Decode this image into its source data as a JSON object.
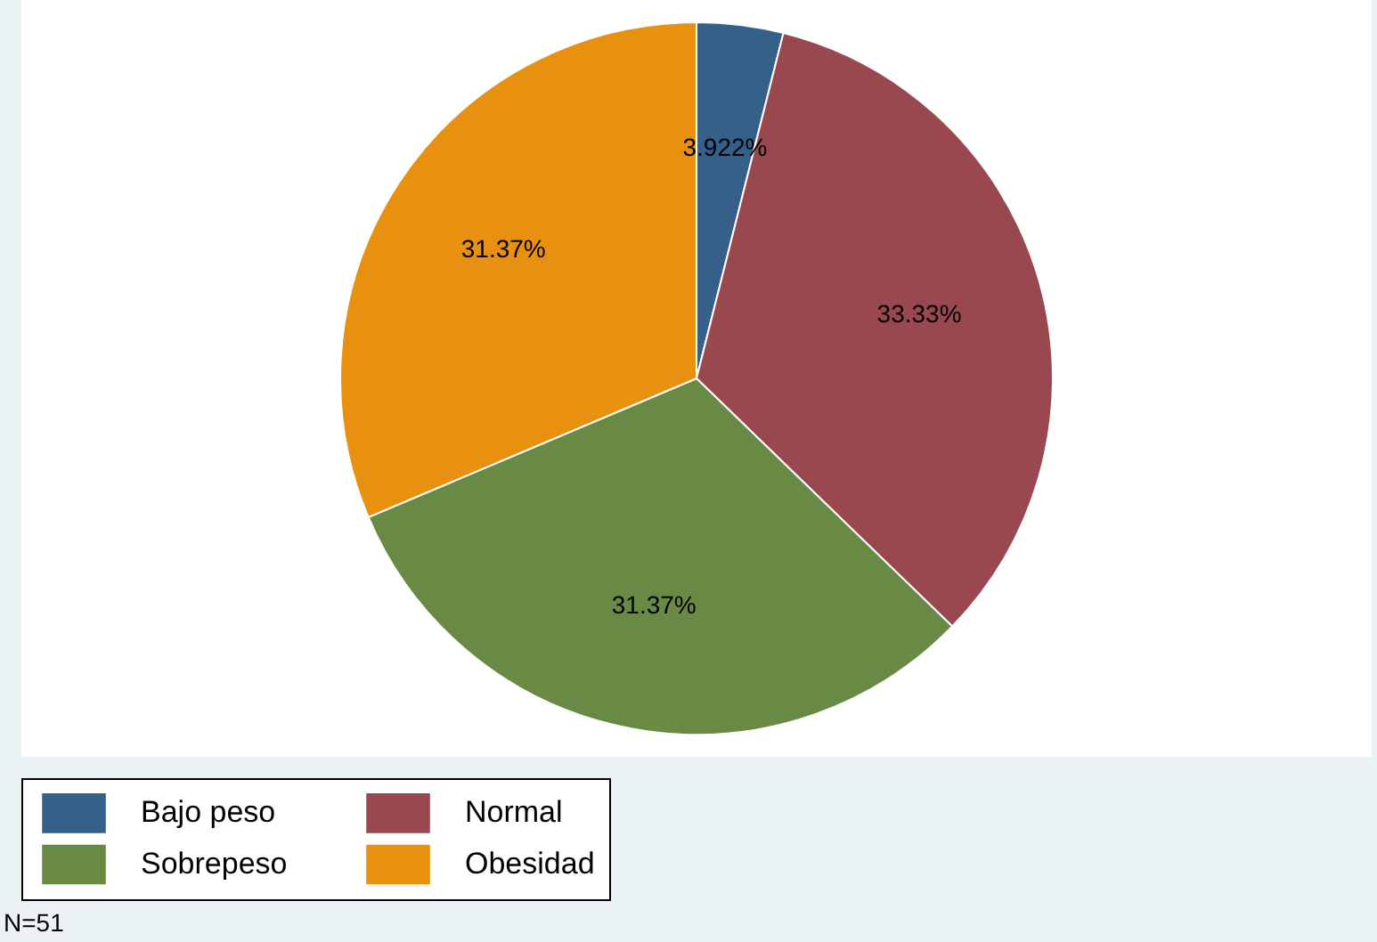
{
  "chart_data": {
    "type": "pie",
    "categories": [
      "Bajo peso",
      "Normal",
      "Sobrepeso",
      "Obesidad"
    ],
    "values": [
      3.922,
      33.33,
      31.37,
      31.37
    ],
    "value_labels": [
      "3.922%",
      "33.33%",
      "31.37%",
      "31.37%"
    ],
    "colors": [
      "#35608a",
      "#994850",
      "#698a45",
      "#e8900f"
    ],
    "legend": "bottom",
    "annotations": [
      "N=51"
    ]
  }
}
